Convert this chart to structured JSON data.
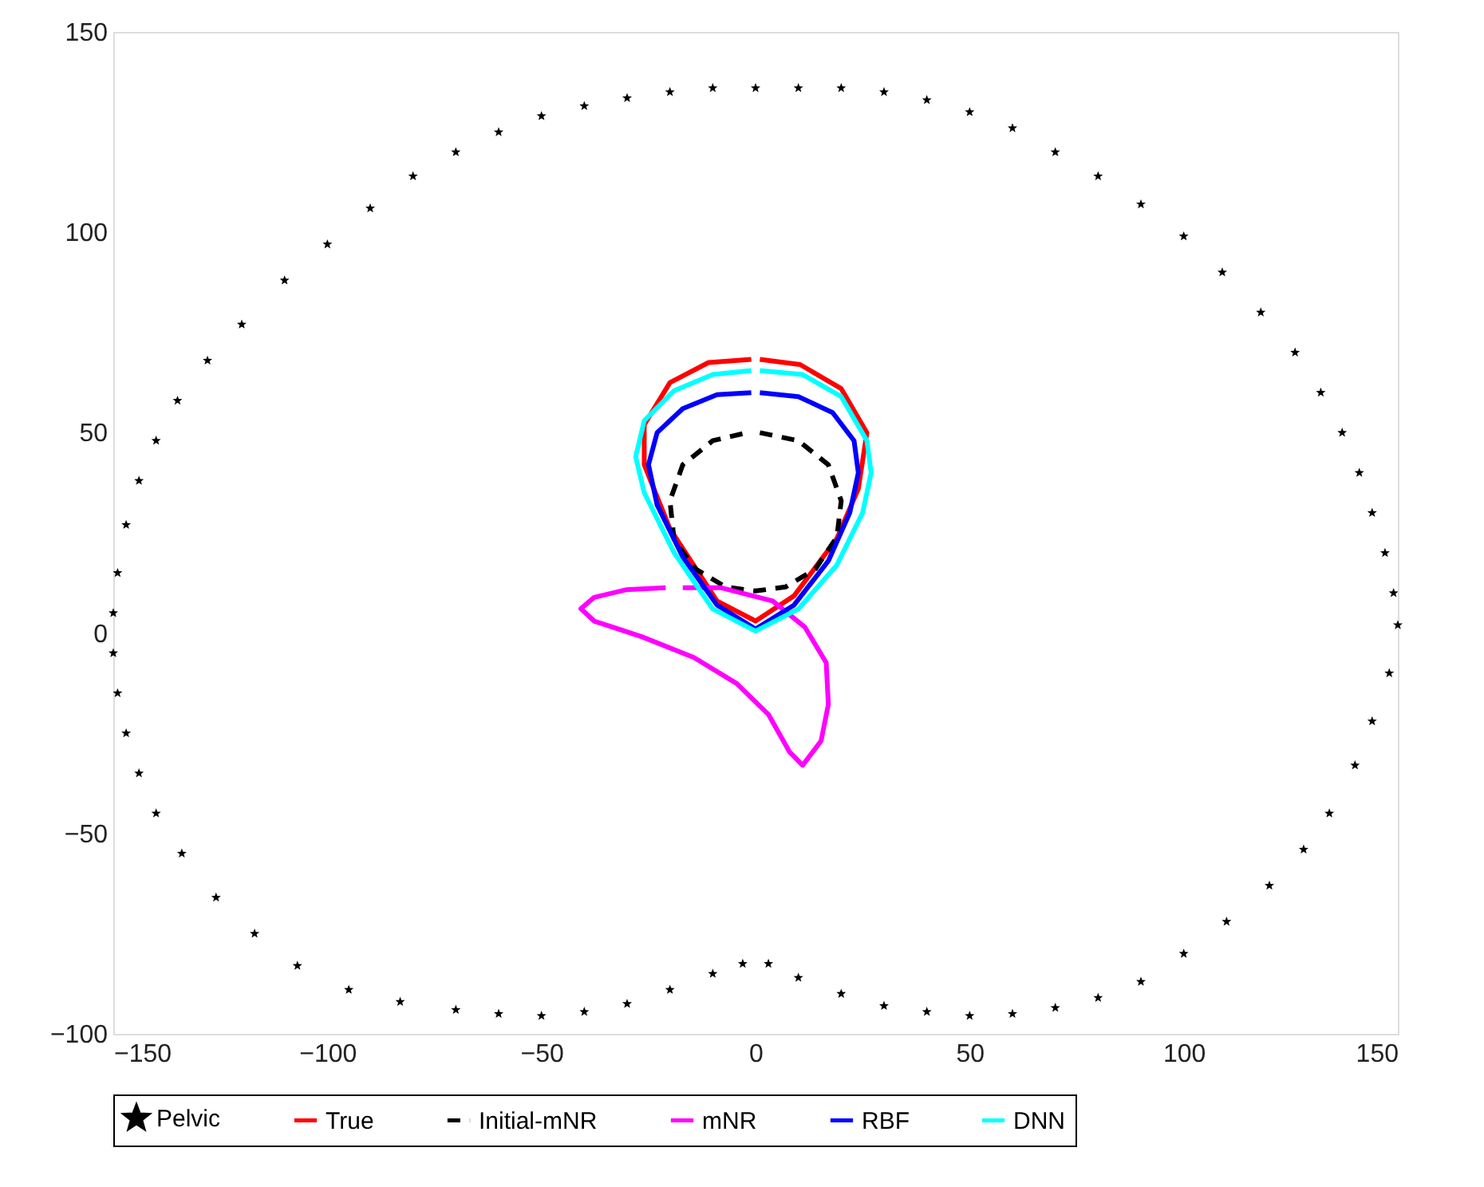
{
  "chart_data": {
    "type": "line",
    "xlim": [
      -150,
      150
    ],
    "ylim": [
      -100,
      150
    ],
    "xticks": [
      -150,
      -100,
      -50,
      0,
      50,
      100,
      150
    ],
    "yticks": [
      -100,
      -50,
      0,
      50,
      100,
      150
    ],
    "grid": false,
    "legend": "bottom",
    "series": [
      {
        "name": "Pelvic",
        "type": "scatter",
        "marker": "star",
        "color": "#000000",
        "x": [
          0,
          -10,
          -20,
          -30,
          -40,
          -50,
          -60,
          -70,
          -80,
          -90,
          -100,
          -110,
          -120,
          -128,
          -135,
          -140,
          -144,
          -147,
          -149,
          -150,
          -150,
          -149,
          -147,
          -144,
          -140,
          -134,
          -126,
          -117,
          -107,
          -95,
          -83,
          -70,
          -60,
          -50,
          -40,
          -30,
          -20,
          -10,
          -3,
          3,
          10,
          20,
          30,
          40,
          50,
          60,
          70,
          80,
          90,
          100,
          110,
          120,
          128,
          134,
          140,
          144,
          148,
          150,
          149,
          147,
          144,
          141,
          137,
          132,
          126,
          118,
          109,
          100,
          90,
          80,
          70,
          60,
          50,
          40,
          30,
          20,
          10
        ],
        "values": [
          136,
          136,
          135,
          133.5,
          131.5,
          129,
          125,
          120,
          114,
          106,
          97,
          88,
          77,
          68,
          58,
          48,
          38,
          27,
          15,
          5,
          -5,
          -15,
          -25,
          -35,
          -45,
          -55,
          -66,
          -75,
          -83,
          -89,
          -92,
          -94,
          -95,
          -95.5,
          -94.5,
          -92.5,
          -89,
          -85,
          -82.5,
          -82.5,
          -86,
          -90,
          -93,
          -94.5,
          -95.5,
          -95,
          -93.5,
          -91,
          -87,
          -80,
          -72,
          -63,
          -54,
          -45,
          -33,
          -22,
          -10,
          2,
          10,
          20,
          30,
          40,
          50,
          60,
          70,
          80,
          90,
          99,
          107,
          114,
          120,
          126,
          130,
          133,
          135,
          136,
          136
        ]
      },
      {
        "name": "True",
        "line_style": "solid",
        "color": "#ff0000",
        "x": [
          1,
          10.4,
          20,
          26,
          24,
          19,
          9,
          0,
          -9,
          -20,
          -26,
          -26,
          -20,
          -11,
          -1
        ],
        "values": [
          68.3,
          67,
          61,
          50,
          36,
          23.6,
          9.3,
          3,
          8,
          26,
          42,
          52,
          62.5,
          67.5,
          68.3
        ]
      },
      {
        "name": "Initial-mNR",
        "line_style": "dashed",
        "color": "#000000",
        "x": [
          1,
          10,
          17,
          20,
          19,
          14,
          7,
          0,
          -7,
          -14,
          -19,
          -20,
          -17,
          -10,
          -2
        ],
        "values": [
          50,
          48,
          42,
          33,
          24,
          16,
          11.5,
          10.5,
          11.5,
          16,
          23,
          33,
          42,
          48,
          50
        ]
      },
      {
        "name": "mNR",
        "line_style": "solid",
        "color": "#ff00ff",
        "x": [
          -17,
          -8,
          4,
          11.5,
          16.5,
          17,
          15.3,
          11,
          7.9,
          3,
          -4.4,
          -14.4,
          -26.6,
          -37.7,
          -40.8,
          -37.7,
          -30.3,
          -21
        ],
        "values": [
          11.3,
          11.3,
          8,
          1.5,
          -7.4,
          -17.8,
          -26.9,
          -33,
          -29.6,
          -20.3,
          -12.6,
          -6.1,
          -0.9,
          3,
          6.1,
          8.9,
          10.8,
          11.3
        ]
      },
      {
        "name": "RBF",
        "line_style": "solid",
        "color": "#0000ff",
        "x": [
          1,
          10,
          18,
          23,
          24,
          22,
          17,
          9,
          0,
          -9,
          -17,
          -23,
          -25,
          -23,
          -17,
          -9,
          -1
        ],
        "values": [
          60,
          59,
          55,
          48,
          40,
          30,
          18,
          7,
          1,
          7,
          19,
          32,
          42,
          50,
          56,
          59.5,
          60
        ]
      },
      {
        "name": "DNN",
        "line_style": "solid",
        "color": "#00ffff",
        "x": [
          1,
          11,
          20,
          26,
          27,
          25,
          19,
          10,
          0,
          -10,
          -19,
          -26,
          -28,
          -26,
          -19,
          -10,
          -1
        ],
        "values": [
          65.5,
          64.5,
          59,
          48,
          40,
          30,
          17,
          6,
          0.5,
          6,
          20,
          35,
          44,
          53,
          60.5,
          64.5,
          65.5
        ]
      }
    ]
  }
}
